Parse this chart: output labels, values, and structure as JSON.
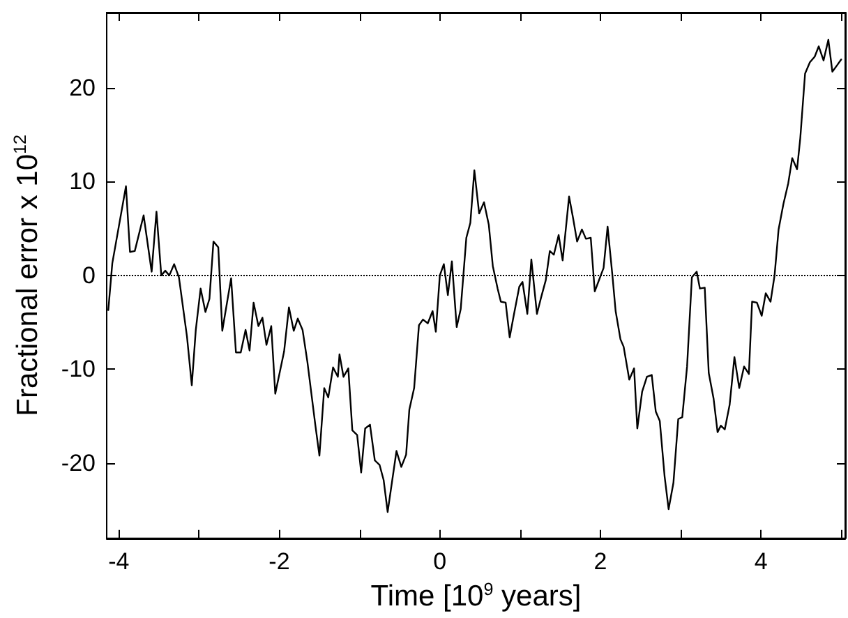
{
  "chart_data": {
    "type": "line",
    "xlabel": "Time [10$^{9}$ years]",
    "ylabel": "Fractional error x 10$^{12}$",
    "x": [
      -4.13,
      -4.08,
      -3.91,
      -3.86,
      -3.8,
      -3.69,
      -3.59,
      -3.53,
      -3.47,
      -3.42,
      -3.37,
      -3.31,
      -3.25,
      -3.15,
      -3.09,
      -3.04,
      -2.98,
      -2.92,
      -2.87,
      -2.82,
      -2.76,
      -2.71,
      -2.6,
      -2.54,
      -2.48,
      -2.42,
      -2.37,
      -2.32,
      -2.26,
      -2.21,
      -2.16,
      -2.1,
      -2.05,
      -1.94,
      -1.88,
      -1.82,
      -1.77,
      -1.71,
      -1.65,
      -1.55,
      -1.5,
      -1.44,
      -1.39,
      -1.33,
      -1.27,
      -1.25,
      -1.2,
      -1.14,
      -1.09,
      -1.03,
      -0.98,
      -0.93,
      -0.87,
      -0.81,
      -0.75,
      -0.7,
      -0.65,
      -0.54,
      -0.48,
      -0.42,
      -0.38,
      -0.32,
      -0.26,
      -0.21,
      -0.15,
      -0.09,
      -0.05,
      0,
      0.05,
      0.1,
      0.15,
      0.21,
      0.26,
      0.33,
      0.38,
      0.43,
      0.49,
      0.55,
      0.61,
      0.66,
      0.72,
      0.76,
      0.82,
      0.87,
      0.92,
      0.99,
      1.03,
      1.09,
      1.14,
      1.21,
      1.26,
      1.32,
      1.37,
      1.42,
      1.48,
      1.53,
      1.61,
      1.66,
      1.71,
      1.77,
      1.82,
      1.88,
      1.93,
      2.04,
      2.09,
      2.15,
      2.19,
      2.25,
      2.29,
      2.36,
      2.42,
      2.46,
      2.52,
      2.58,
      2.64,
      2.69,
      2.74,
      2.8,
      2.85,
      2.91,
      2.97,
      3.02,
      3.08,
      3.14,
      3.2,
      3.24,
      3.3,
      3.35,
      3.41,
      3.46,
      3.5,
      3.55,
      3.61,
      3.67,
      3.73,
      3.79,
      3.85,
      3.89,
      3.95,
      4.01,
      4.06,
      4.12,
      4.17,
      4.22,
      4.28,
      4.34,
      4.39,
      4.45,
      4.49,
      4.55,
      4.61,
      4.67,
      4.72,
      4.78,
      4.84,
      4.89,
      4.95,
      5.0
    ],
    "series": [
      {
        "color": "#000000",
        "values": [
          -3.7,
          1.3,
          9.5,
          2.5,
          2.6,
          6.4,
          0.4,
          6.8,
          0,
          0.5,
          0,
          1.2,
          -0.2,
          -6.5,
          -11.7,
          -5.8,
          -1.4,
          -3.9,
          -2.5,
          3.6,
          3.0,
          -5.9,
          -0.3,
          -8.2,
          -8.2,
          -5.8,
          -8.0,
          -2.9,
          -5.4,
          -4.5,
          -7.4,
          -5.4,
          -12.6,
          -8.1,
          -3.4,
          -5.9,
          -4.6,
          -5.8,
          -9.2,
          -16.0,
          -19.2,
          -12.0,
          -13.0,
          -9.8,
          -10.8,
          -8.4,
          -10.8,
          -9.9,
          -16.5,
          -17.0,
          -21.0,
          -16.3,
          -15.9,
          -19.7,
          -20.2,
          -21.8,
          -25.2,
          -18.7,
          -20.4,
          -19.1,
          -14.3,
          -12.0,
          -5.3,
          -4.7,
          -5.1,
          -3.8,
          -6.0,
          0,
          1.2,
          -2.1,
          1.5,
          -5.5,
          -3.6,
          4.0,
          5.6,
          11.2,
          6.6,
          7.8,
          5.4,
          1.0,
          -1.4,
          -2.8,
          -2.9,
          -6.6,
          -4.3,
          -1.2,
          -0.7,
          -4.1,
          1.7,
          -4.1,
          -2.4,
          -0.5,
          2.6,
          2.2,
          4.3,
          1.6,
          8.4,
          6.1,
          3.6,
          4.9,
          3.9,
          4.0,
          -1.7,
          0.8,
          5.2,
          0,
          -3.8,
          -6.8,
          -7.6,
          -11.1,
          -9.9,
          -16.3,
          -12.4,
          -10.8,
          -10.6,
          -14.5,
          -15.5,
          -21.4,
          -24.9,
          -22.1,
          -15.3,
          -15.1,
          -9.7,
          -0.2,
          0.4,
          -1.4,
          -1.3,
          -10.4,
          -13.1,
          -16.7,
          -16.0,
          -16.4,
          -13.8,
          -8.7,
          -12.0,
          -9.7,
          -10.5,
          -2.8,
          -2.9,
          -4.3,
          -1.9,
          -2.8,
          0,
          4.9,
          7.6,
          9.8,
          12.5,
          11.3,
          14.6,
          21.5,
          22.7,
          23.3,
          24.4,
          22.9,
          25.1,
          21.7,
          22.4,
          23.0
        ]
      }
    ],
    "xlim": [
      -4.15,
      5.05
    ],
    "ylim": [
      -28,
      28
    ],
    "xticks": [
      -4,
      {
        "value": -3,
        "label": null
      },
      -2,
      {
        "value": -1,
        "label": null
      },
      0,
      {
        "value": 1,
        "label": null
      },
      2,
      {
        "value": 3,
        "label": null
      },
      4,
      {
        "value": 5,
        "label": null
      }
    ],
    "yticks": [
      -20,
      -10,
      0,
      10,
      20
    ],
    "ref_lines": [
      {
        "axis": "y",
        "value": 0,
        "color": "#000000",
        "line_style": "dotted"
      }
    ],
    "grid": false,
    "marker": "none",
    "line_style": "solid"
  }
}
